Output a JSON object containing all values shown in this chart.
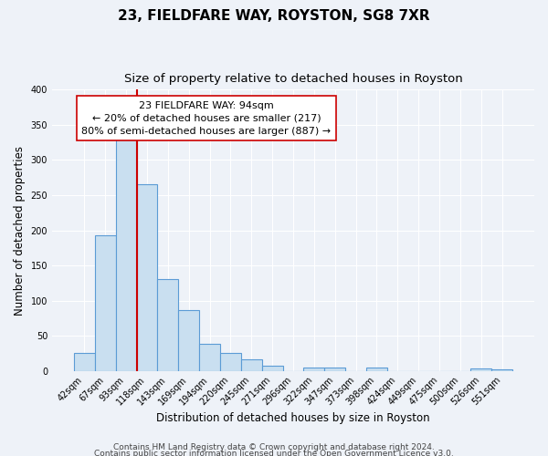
{
  "title": "23, FIELDFARE WAY, ROYSTON, SG8 7XR",
  "subtitle": "Size of property relative to detached houses in Royston",
  "xlabel": "Distribution of detached houses by size in Royston",
  "ylabel": "Number of detached properties",
  "bar_labels": [
    "42sqm",
    "67sqm",
    "93sqm",
    "118sqm",
    "143sqm",
    "169sqm",
    "194sqm",
    "220sqm",
    "245sqm",
    "271sqm",
    "296sqm",
    "322sqm",
    "347sqm",
    "373sqm",
    "398sqm",
    "424sqm",
    "449sqm",
    "475sqm",
    "500sqm",
    "526sqm",
    "551sqm"
  ],
  "bar_values": [
    25,
    193,
    330,
    265,
    130,
    86,
    38,
    25,
    17,
    8,
    0,
    5,
    5,
    0,
    5,
    0,
    0,
    0,
    0,
    3,
    2
  ],
  "bar_color": "#c9dff0",
  "bar_edge_color": "#5b9bd5",
  "vline_x": 2.5,
  "vline_color": "#cc0000",
  "annotation_text": "23 FIELDFARE WAY: 94sqm\n← 20% of detached houses are smaller (217)\n80% of semi-detached houses are larger (887) →",
  "annotation_box_color": "#ffffff",
  "annotation_box_edge": "#cc0000",
  "ylim": [
    0,
    400
  ],
  "yticks": [
    0,
    50,
    100,
    150,
    200,
    250,
    300,
    350,
    400
  ],
  "footer1": "Contains HM Land Registry data © Crown copyright and database right 2024.",
  "footer2": "Contains public sector information licensed under the Open Government Licence v3.0.",
  "background_color": "#eef2f8",
  "plot_background": "#eef2f8",
  "grid_color": "#ffffff",
  "title_fontsize": 11,
  "subtitle_fontsize": 9.5,
  "axis_label_fontsize": 8.5,
  "tick_fontsize": 7,
  "annotation_fontsize": 8,
  "footer_fontsize": 6.5
}
